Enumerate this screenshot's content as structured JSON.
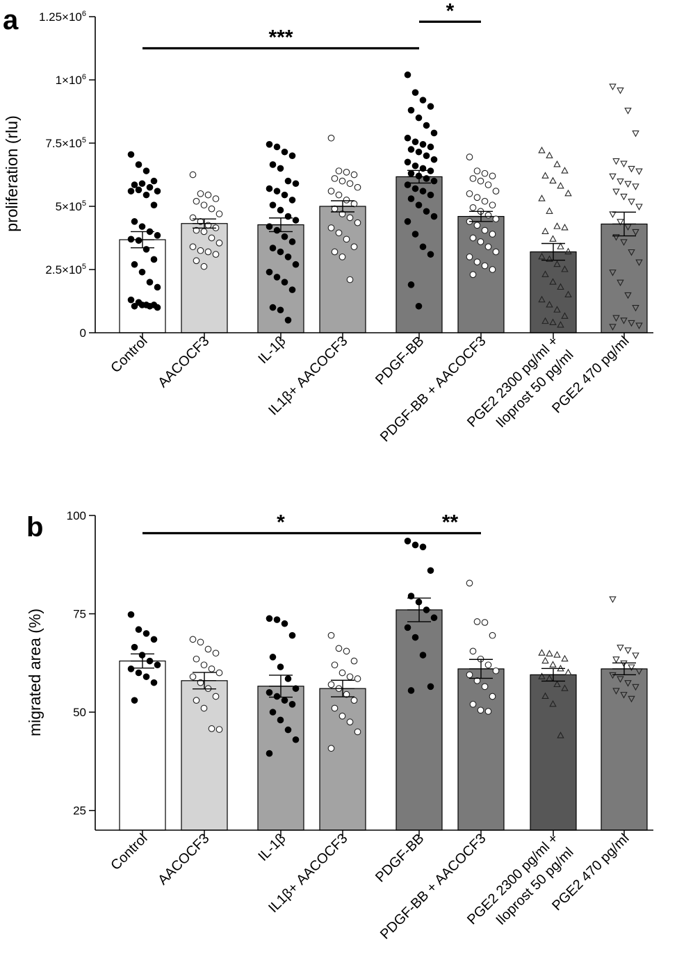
{
  "chart_data": [
    {
      "panel": "a",
      "type": "bar",
      "ylabel": "proliferation (rlu)",
      "xlabel": "",
      "ylim": [
        0,
        1250000
      ],
      "yticks": [
        {
          "value": 0,
          "mant": "0",
          "exp": ""
        },
        {
          "value": 250000,
          "mant": "2.5×10",
          "exp": "5"
        },
        {
          "value": 500000,
          "mant": "5×10",
          "exp": "5"
        },
        {
          "value": 750000,
          "mant": "7.5×10",
          "exp": "5"
        },
        {
          "value": 1000000,
          "mant": "1×10",
          "exp": "6"
        },
        {
          "value": 1250000,
          "mant": "1.25×10",
          "exp": "6"
        }
      ],
      "categories": [
        {
          "label": "Control"
        },
        {
          "label": "AACOCF3"
        },
        {
          "label": "IL-1β"
        },
        {
          "label": "IL1β+ AACOCF3"
        },
        {
          "label": "PDGF-BB"
        },
        {
          "label": "PDGF-BB + AACOCF3"
        },
        {
          "label": "PGE2 2300 pg/ml +",
          "label2": "Iloprost 50 pg/ml"
        },
        {
          "label": "PGE2 470 pg/ml"
        }
      ],
      "series": [
        {
          "name": "Control",
          "mean": 368000,
          "sem": 32000,
          "fill": "#ffffff",
          "marker": "filled-circle",
          "points": [
            705000,
            665000,
            640000,
            600000,
            585000,
            590000,
            575000,
            560000,
            560000,
            565000,
            545000,
            505000,
            440000,
            420000,
            400000,
            385000,
            370000,
            365000,
            330000,
            290000,
            270000,
            240000,
            200000,
            180000,
            130000,
            120000,
            110000,
            110000,
            105000,
            110000,
            105000,
            100000
          ]
        },
        {
          "name": "AACOCF3",
          "mean": 432000,
          "sem": 18000,
          "fill": "#d4d4d4",
          "marker": "open-circle",
          "points": [
            625000,
            550000,
            545000,
            530000,
            520000,
            505000,
            490000,
            470000,
            455000,
            440000,
            425000,
            415000,
            405000,
            400000,
            375000,
            355000,
            340000,
            325000,
            320000,
            310000,
            285000,
            262000
          ]
        },
        {
          "name": "IL-1β",
          "mean": 427000,
          "sem": 27000,
          "fill": "#a3a3a3",
          "marker": "filled-circle",
          "points": [
            745000,
            735000,
            715000,
            700000,
            665000,
            650000,
            600000,
            590000,
            570000,
            560000,
            545000,
            525000,
            505000,
            485000,
            460000,
            445000,
            420000,
            405000,
            380000,
            360000,
            335000,
            320000,
            300000,
            270000,
            240000,
            220000,
            200000,
            170000,
            100000,
            90000,
            50000
          ]
        },
        {
          "name": "IL1β+ AACOCF3",
          "mean": 500000,
          "sem": 22000,
          "fill": "#a3a3a3",
          "marker": "open-circle",
          "points": [
            770000,
            640000,
            635000,
            625000,
            610000,
            600000,
            590000,
            575000,
            560000,
            545000,
            525000,
            510000,
            490000,
            470000,
            455000,
            435000,
            415000,
            395000,
            370000,
            340000,
            320000,
            300000,
            210000
          ]
        },
        {
          "name": "PDGF-BB",
          "mean": 617000,
          "sem": 25000,
          "fill": "#7a7a7a",
          "marker": "filled-circle",
          "points": [
            1020000,
            950000,
            920000,
            895000,
            880000,
            850000,
            820000,
            790000,
            770000,
            755000,
            745000,
            735000,
            725000,
            715000,
            700000,
            685000,
            675000,
            660000,
            650000,
            640000,
            630000,
            620000,
            610000,
            600000,
            585000,
            570000,
            560000,
            545000,
            530000,
            505000,
            480000,
            460000,
            440000,
            390000,
            340000,
            310000,
            190000,
            105000
          ]
        },
        {
          "name": "PDGF-BB + AACOCF3",
          "mean": 460000,
          "sem": 20000,
          "fill": "#7a7a7a",
          "marker": "open-circle",
          "points": [
            695000,
            640000,
            630000,
            620000,
            610000,
            600000,
            585000,
            560000,
            550000,
            535000,
            520000,
            505000,
            495000,
            480000,
            465000,
            450000,
            440000,
            425000,
            405000,
            390000,
            375000,
            360000,
            340000,
            320000,
            300000,
            280000,
            265000,
            250000,
            230000
          ]
        },
        {
          "name": "PGE2 2300 pg/ml + Iloprost 50 pg/ml",
          "mean": 320000,
          "sem": 33000,
          "fill": "#575757",
          "marker": "open-triangle",
          "points": [
            720000,
            700000,
            665000,
            640000,
            620000,
            600000,
            580000,
            550000,
            530000,
            480000,
            420000,
            415000,
            400000,
            370000,
            340000,
            320000,
            300000,
            290000,
            270000,
            250000,
            230000,
            200000,
            180000,
            150000,
            130000,
            110000,
            90000,
            65000,
            45000,
            40000,
            30000
          ]
        },
        {
          "name": "PGE2 470 pg/ml",
          "mean": 430000,
          "sem": 47000,
          "fill": "#7a7a7a",
          "marker": "open-triangle",
          "points": [
            975000,
            960000,
            880000,
            790000,
            680000,
            670000,
            650000,
            640000,
            620000,
            600000,
            590000,
            580000,
            560000,
            540000,
            520000,
            500000,
            470000,
            440000,
            420000,
            400000,
            380000,
            360000,
            320000,
            280000,
            240000,
            200000,
            150000,
            100000,
            60000,
            50000,
            40000,
            30000,
            25000
          ]
        }
      ],
      "significance": [
        {
          "from": 0,
          "to": 4,
          "value": 1125000,
          "label": "***"
        },
        {
          "from": 4,
          "to": 5,
          "value": 1230000,
          "label": "*"
        }
      ]
    },
    {
      "panel": "b",
      "type": "bar",
      "ylabel": "migrated area (%)",
      "xlabel": "",
      "ylim": [
        20,
        100
      ],
      "yticks": [
        {
          "value": 25,
          "mant": "25",
          "exp": ""
        },
        {
          "value": 50,
          "mant": "50",
          "exp": ""
        },
        {
          "value": 75,
          "mant": "75",
          "exp": ""
        },
        {
          "value": 100,
          "mant": "100",
          "exp": ""
        }
      ],
      "categories": [
        {
          "label": "Control"
        },
        {
          "label": "AACOCF3"
        },
        {
          "label": "IL-1β"
        },
        {
          "label": "IL1β+ AACOCF3"
        },
        {
          "label": "PDGF-BB"
        },
        {
          "label": "PDGF-BB + AACOCF3"
        },
        {
          "label": "PGE2 2300 pg/ml +",
          "label2": "Iloprost 50 pg/ml"
        },
        {
          "label": "PGE2 470 pg/ml"
        }
      ],
      "series": [
        {
          "name": "Control",
          "mean": 63,
          "sem": 1.8,
          "fill": "#ffffff",
          "marker": "filled-circle",
          "points": [
            74.8,
            71,
            70,
            68.5,
            66.5,
            64.5,
            63,
            62,
            61,
            60,
            59,
            57.5,
            53
          ]
        },
        {
          "name": "AACOCF3",
          "mean": 58,
          "sem": 2.1,
          "fill": "#d4d4d4",
          "marker": "open-circle",
          "points": [
            68.5,
            67.8,
            66,
            65,
            63.5,
            62,
            61,
            60,
            59,
            57.5,
            56,
            54,
            53,
            51,
            45.8,
            45.6
          ]
        },
        {
          "name": "IL-1β",
          "mean": 56.6,
          "sem": 2.8,
          "fill": "#a3a3a3",
          "marker": "filled-circle",
          "points": [
            73.8,
            73.5,
            72.5,
            69.5,
            64,
            61.5,
            58.5,
            56,
            55,
            54,
            53,
            52,
            50,
            48,
            45.5,
            43,
            39.5
          ]
        },
        {
          "name": "IL1β+ AACOCF3",
          "mean": 56,
          "sem": 2.1,
          "fill": "#a3a3a3",
          "marker": "open-circle",
          "points": [
            69.5,
            66.2,
            65.5,
            63,
            62,
            60,
            59,
            58.5,
            57,
            56,
            54.5,
            53,
            51,
            49,
            47.5,
            45,
            40.8
          ]
        },
        {
          "name": "PDGF-BB",
          "mean": 76,
          "sem": 3,
          "fill": "#7a7a7a",
          "marker": "filled-circle",
          "points": [
            93.5,
            92.5,
            92,
            86,
            79.5,
            78,
            76,
            74,
            71.5,
            69,
            64.5,
            56.5,
            55.5
          ]
        },
        {
          "name": "PDGF-BB + AACOCF3",
          "mean": 61,
          "sem": 2.4,
          "fill": "#7a7a7a",
          "marker": "open-circle",
          "points": [
            82.8,
            73,
            72.8,
            69.5,
            65.5,
            63.5,
            62,
            60.5,
            59.5,
            58,
            56.5,
            54,
            52,
            50.5,
            50.2
          ]
        },
        {
          "name": "PGE2 2300 pg/ml + Iloprost 50 pg/ml",
          "mean": 59.5,
          "sem": 1.6,
          "fill": "#575757",
          "marker": "open-triangle",
          "points": [
            65,
            64.8,
            64.5,
            63.5,
            63,
            62,
            61,
            60,
            59,
            58.5,
            57,
            56,
            54,
            52,
            44
          ]
        },
        {
          "name": "PGE2 470 pg/ml",
          "mean": 61,
          "sem": 1.5,
          "fill": "#7a7a7a",
          "marker": "open-triangle",
          "points": [
            78.8,
            66.5,
            65.8,
            64.5,
            63.5,
            62.5,
            61.5,
            60.5,
            59.5,
            58.5,
            57.5,
            56.5,
            55.5,
            54.5,
            53.5
          ]
        }
      ],
      "significance": [
        {
          "from": 0,
          "to": 4,
          "value": 95.5,
          "label": "*"
        },
        {
          "from": 4,
          "to": 5,
          "value": 95.5,
          "label": "**"
        }
      ]
    }
  ]
}
